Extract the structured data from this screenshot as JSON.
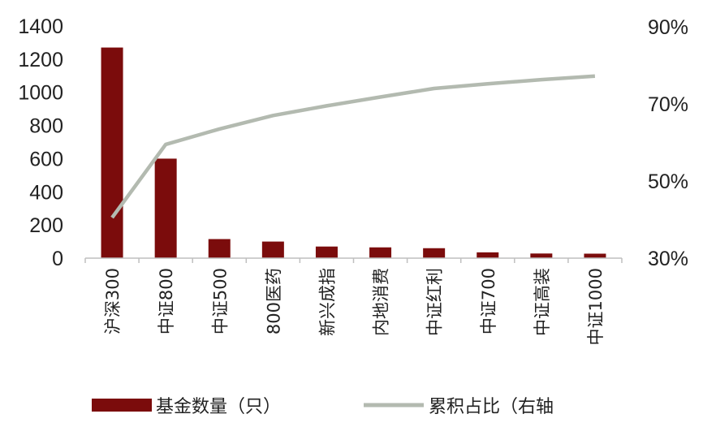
{
  "chart_data": {
    "type": "bar",
    "categories": [
      "沪深300",
      "中证800",
      "中证500",
      "800医药",
      "新兴成指",
      "内地消费",
      "中证红利",
      "中证700",
      "中证高装",
      "中证1000"
    ],
    "series": [
      {
        "name": "基金数量（只）",
        "type": "bar",
        "axis": "left",
        "values": [
          1270,
          600,
          115,
          100,
          70,
          65,
          60,
          35,
          28,
          27
        ]
      },
      {
        "name": "累积占比（右轴",
        "type": "line",
        "axis": "right",
        "values": [
          40.5,
          59.5,
          63.5,
          67,
          69.5,
          71.8,
          74,
          75.2,
          76.3,
          77.2
        ]
      }
    ],
    "y_left": {
      "min": 0,
      "max": 1400,
      "ticks": [
        0,
        200,
        400,
        600,
        800,
        1000,
        1200,
        1400
      ]
    },
    "y_right": {
      "min": 30,
      "max": 90,
      "ticks": [
        "30%",
        "50%",
        "70%",
        "90%"
      ],
      "tick_values": [
        30,
        50,
        70,
        90
      ]
    },
    "legend_position": "bottom",
    "colors": {
      "bar": "#7b0c0c",
      "line": "#b3bab0",
      "axis": "#bfbfbf"
    }
  }
}
